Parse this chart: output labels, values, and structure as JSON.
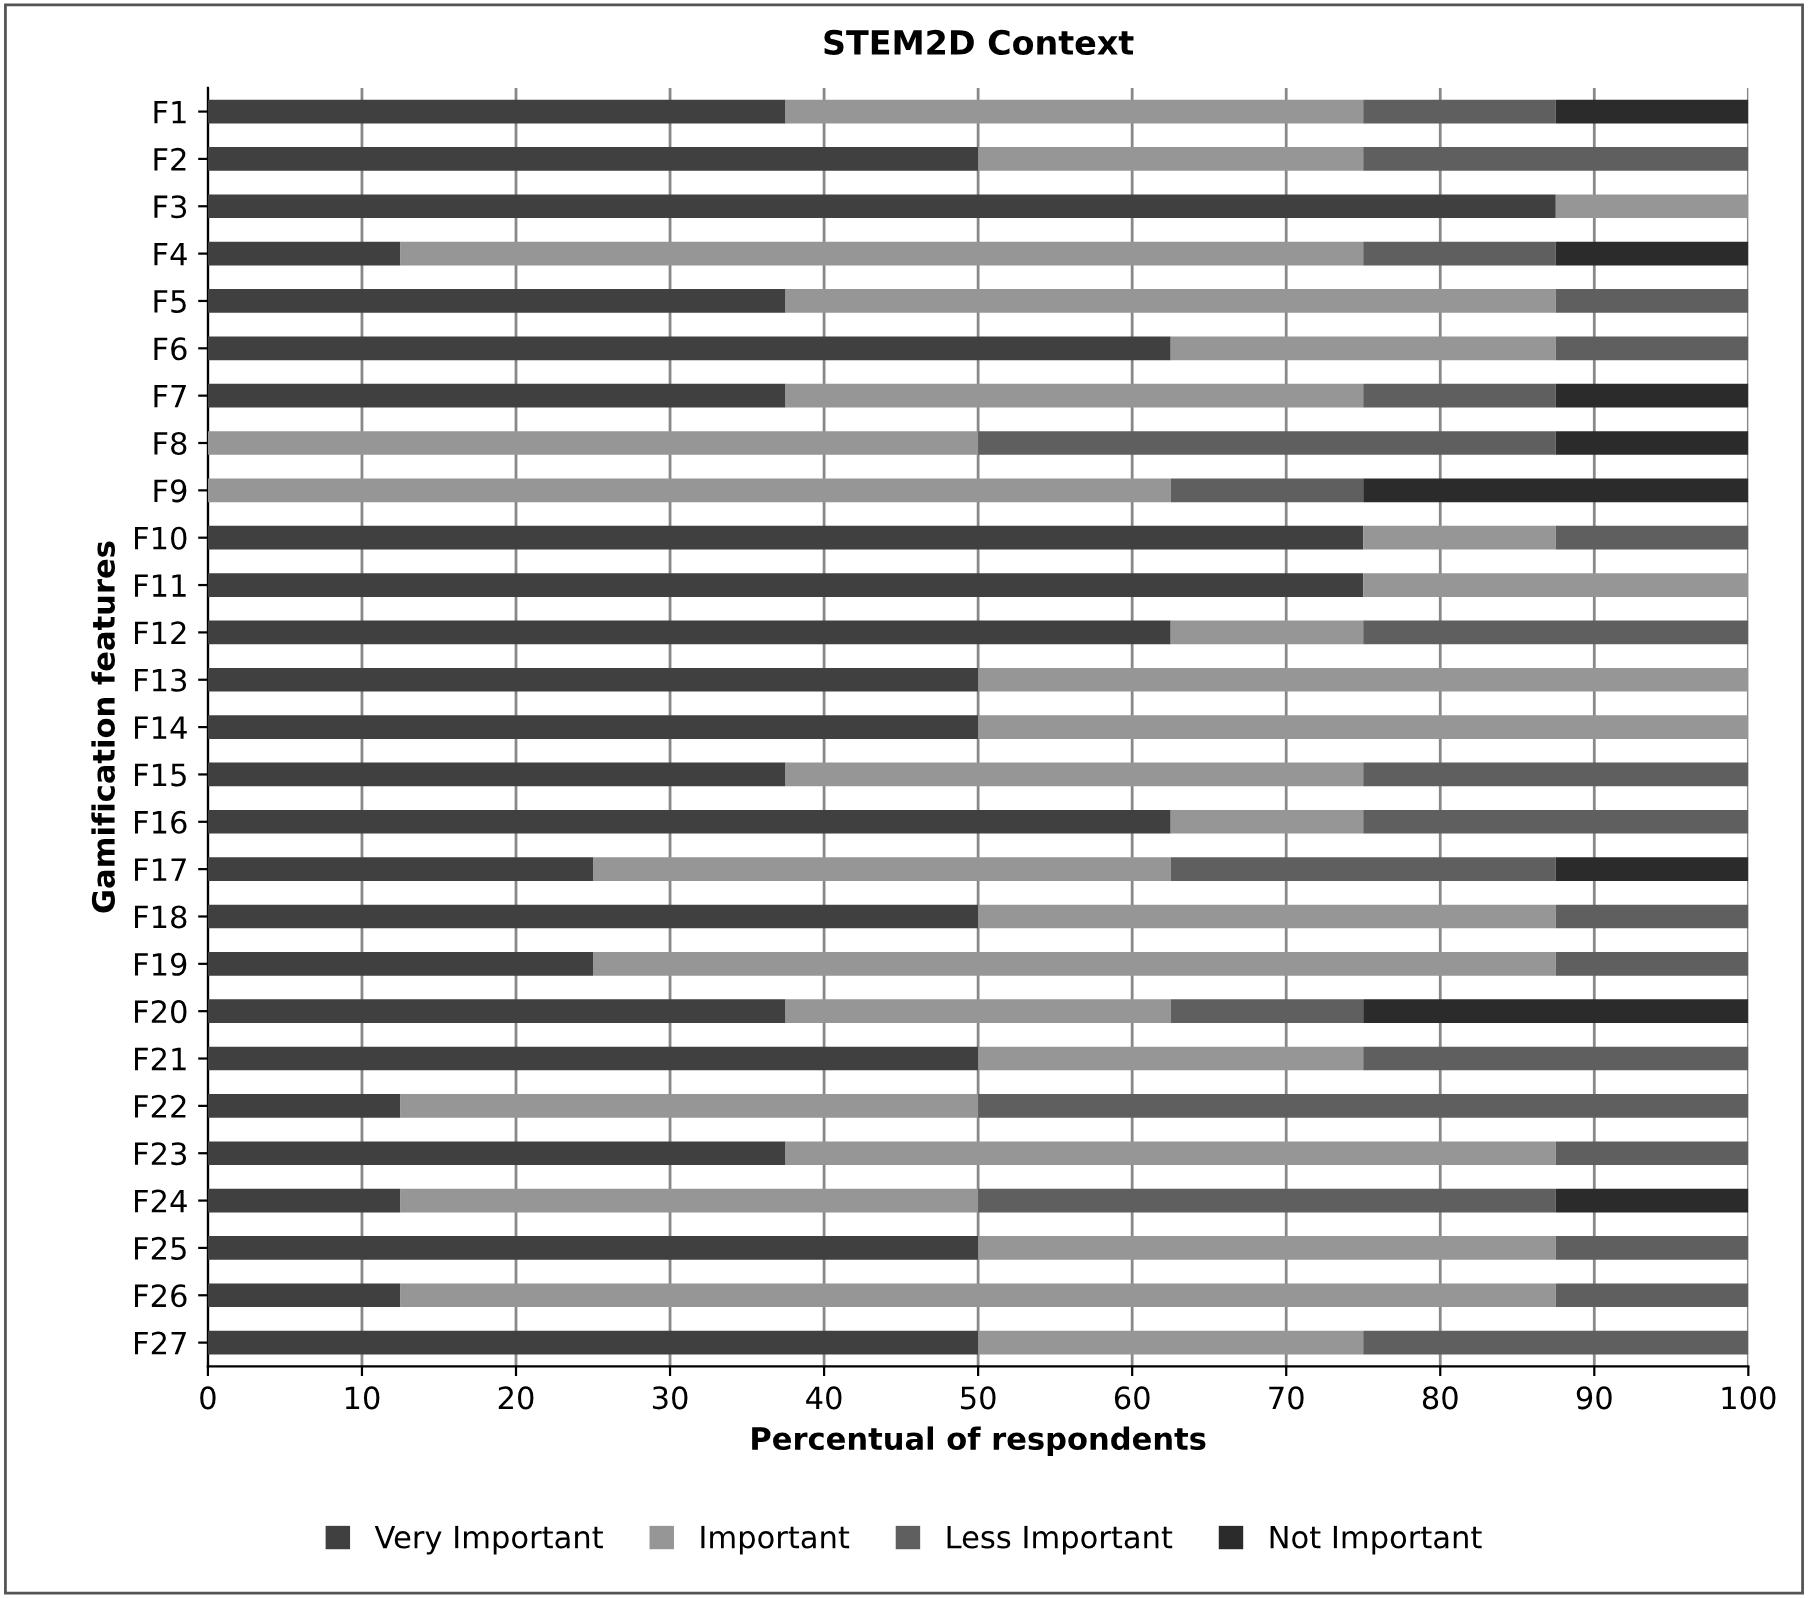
{
  "chart_data": {
    "type": "bar",
    "orientation": "horizontal",
    "stacked": true,
    "title": "STEM2D Context",
    "xlabel": "Percentual of respondents",
    "ylabel": "Gamification features",
    "categories": [
      "F1",
      "F2",
      "F3",
      "F4",
      "F5",
      "F6",
      "F7",
      "F8",
      "F9",
      "F10",
      "F11",
      "F12",
      "F13",
      "F14",
      "F15",
      "F16",
      "F17",
      "F18",
      "F19",
      "F20",
      "F21",
      "F22",
      "F23",
      "F24",
      "F25",
      "F26",
      "F27"
    ],
    "series": [
      {
        "name": "Very Important",
        "color": "#404040",
        "values": [
          37.5,
          50,
          87.5,
          12.5,
          37.5,
          62.5,
          37.5,
          0,
          0,
          75,
          75,
          62.5,
          50,
          50,
          37.5,
          62.5,
          25,
          50,
          25,
          37.5,
          50,
          12.5,
          37.5,
          12.5,
          50,
          12.5,
          50
        ]
      },
      {
        "name": "Important",
        "color": "#969696",
        "values": [
          37.5,
          25,
          12.5,
          62.5,
          50,
          25,
          37.5,
          50,
          62.5,
          12.5,
          25,
          12.5,
          50,
          50,
          37.5,
          12.5,
          37.5,
          37.5,
          62.5,
          25,
          25,
          37.5,
          50,
          37.5,
          37.5,
          75,
          25
        ]
      },
      {
        "name": "Less Important",
        "color": "#5f5f5f",
        "values": [
          12.5,
          25,
          0,
          12.5,
          12.5,
          12.5,
          12.5,
          37.5,
          12.5,
          12.5,
          0,
          25,
          0,
          0,
          25,
          25,
          25,
          12.5,
          12.5,
          12.5,
          25,
          50,
          12.5,
          37.5,
          12.5,
          12.5,
          25
        ]
      },
      {
        "name": "Not Important",
        "color": "#2b2b2b",
        "values": [
          12.5,
          0,
          0,
          12.5,
          0,
          0,
          12.5,
          12.5,
          25,
          0,
          0,
          0,
          0,
          0,
          0,
          0,
          12.5,
          0,
          0,
          25,
          0,
          0,
          0,
          12.5,
          0,
          0,
          0
        ]
      }
    ],
    "xlim": [
      0,
      100
    ],
    "xticks": [
      0,
      10,
      20,
      30,
      40,
      50,
      60,
      70,
      80,
      90,
      100
    ],
    "grid": "x",
    "legend": "bottom"
  }
}
